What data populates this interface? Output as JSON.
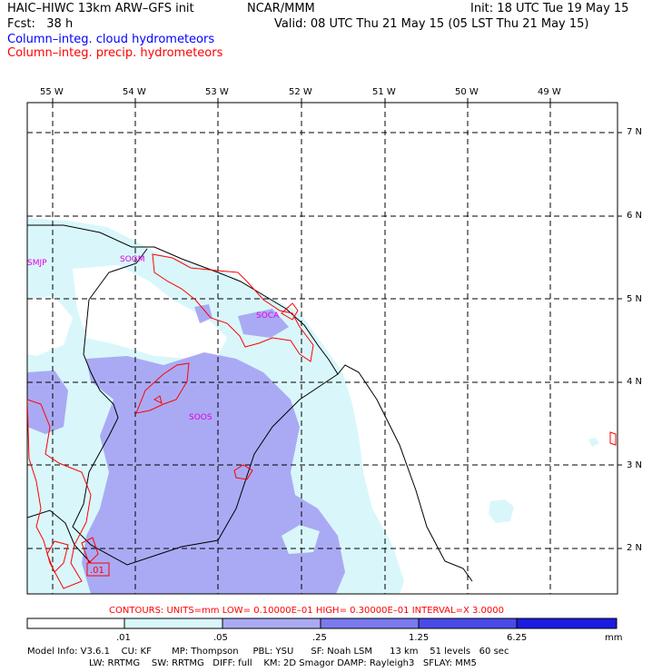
{
  "header": {
    "model": "HAIC–HIWC 13km ARW–GFS init",
    "org": "NCAR/MMM",
    "init": "Init: 18 UTC Tue 19 May 15",
    "fcst_label": "Fcst:",
    "fcst_value": "38 h",
    "valid": "Valid: 08 UTC Thu 21 May 15 (05 LST Thu 21 May 15)"
  },
  "legend": {
    "cloud": "Column–integ. cloud hydrometeors",
    "precip": "Column–integ. precip. hydrometeors",
    "cloud_color": "#0000ff",
    "precip_color": "#ff0000"
  },
  "map": {
    "longitudes": [
      "55 W",
      "54 W",
      "53 W",
      "52 W",
      "51 W",
      "50 W",
      "49 W"
    ],
    "latitudes": [
      "7 N",
      "6 N",
      "5 N",
      "4 N",
      "3 N",
      "2 N"
    ],
    "stations": [
      "SMJP",
      "SOGM",
      "SOCA",
      "SOOS"
    ],
    "contour_label": ".01",
    "shading_colors": [
      "#ffffff",
      "#d9f7fb",
      "#aaaaf4",
      "#7a7aef",
      "#4a4ae8",
      "#1b1be2"
    ]
  },
  "contours_note": "CONTOURS:  UNITS=mm  LOW= 0.10000E–01  HIGH= 0.30000E–01  INTERVAL=X  3.0000",
  "colorbar": {
    "ticks": [
      ".01",
      ".05",
      ".25",
      "1.25",
      "6.25"
    ],
    "unit": "mm"
  },
  "model_info": {
    "line1": "Model Info: V3.6.1    CU: KF       MP: Thompson     PBL: YSU      SF: Noah LSM      13 km    51 levels   60 sec",
    "line2": "LW: RRTMG    SW: RRTMG   DIFF: full    KM: 2D Smagor DAMP: Rayleigh3   SFLAY: MM5"
  }
}
